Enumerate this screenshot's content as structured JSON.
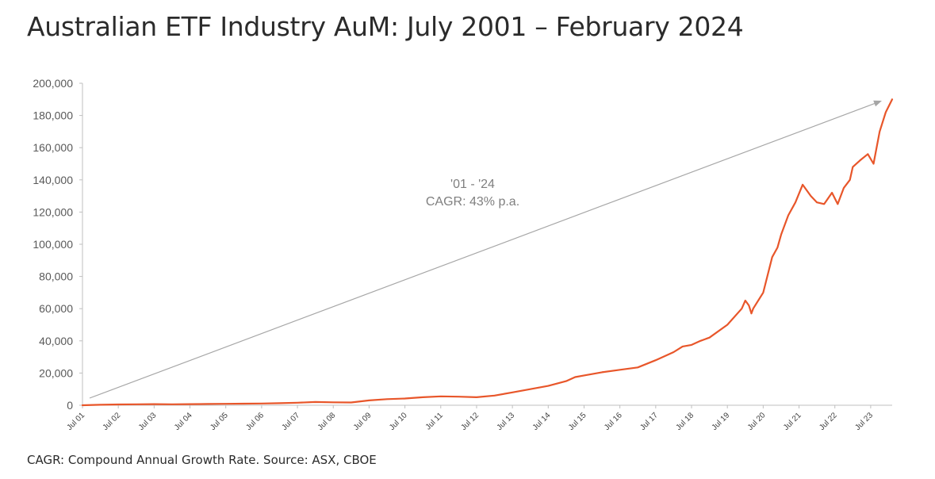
{
  "title": "Australian ETF Industry AuM: July 2001 – February 2024",
  "footnote": "CAGR: Compound Annual Growth Rate. Source: ASX, CBOE",
  "colors": {
    "series": "#e8562a",
    "arrow": "#a6a6a6",
    "axis": "#bfbfbf",
    "text": "#2b2b2b"
  },
  "chart_data": {
    "type": "line",
    "title": "Australian ETF Industry AuM: July 2001 – February 2024",
    "xlabel": "",
    "ylabel": "",
    "ylim": [
      0,
      200000
    ],
    "yticks": [
      0,
      20000,
      40000,
      60000,
      80000,
      100000,
      120000,
      140000,
      160000,
      180000,
      200000
    ],
    "ytick_labels": [
      "0",
      "20,000",
      "40,000",
      "60,000",
      "80,000",
      "100,000",
      "120,000",
      "140,000",
      "160,000",
      "180,000",
      "200,000"
    ],
    "xlim": [
      2001.5,
      2024.1
    ],
    "xtick_labels": [
      "Jul 01",
      "Jul 02",
      "Jul 03",
      "Jul 04",
      "Jul 05",
      "Jul 06",
      "Jul 07",
      "Jul 08",
      "Jul 09",
      "Jul 10",
      "Jul 11",
      "Jul 12",
      "Jul 13",
      "Jul 14",
      "Jul 15",
      "Jul 16",
      "Jul 17",
      "Jul 18",
      "Jul 19",
      "Jul 20",
      "Jul 21",
      "Jul 22",
      "Jul 23"
    ],
    "grid": false,
    "legend": "none",
    "series": [
      {
        "x": [
          2001.5,
          2002.0,
          2002.5,
          2003.0,
          2003.5,
          2004.0,
          2004.5,
          2005.0,
          2005.5,
          2006.0,
          2006.5,
          2007.0,
          2007.5,
          2008.0,
          2008.5,
          2009.0,
          2009.5,
          2010.0,
          2010.5,
          2011.0,
          2011.5,
          2012.0,
          2012.5,
          2013.0,
          2013.5,
          2014.0,
          2014.5,
          2015.0,
          2015.25,
          2015.5,
          2015.75,
          2016.0,
          2016.5,
          2017.0,
          2017.5,
          2018.0,
          2018.25,
          2018.5,
          2018.75,
          2019.0,
          2019.5,
          2019.9,
          2020.0,
          2020.1,
          2020.17,
          2020.22,
          2020.5,
          2020.75,
          2020.9,
          2021.0,
          2021.2,
          2021.4,
          2021.6,
          2021.83,
          2022.0,
          2022.2,
          2022.42,
          2022.58,
          2022.75,
          2022.92,
          2023.0,
          2023.2,
          2023.42,
          2023.58,
          2023.75,
          2023.92,
          2024.1
        ],
        "values": [
          0,
          300,
          500,
          600,
          700,
          600,
          700,
          800,
          900,
          1000,
          1100,
          1300,
          1600,
          2000,
          1800,
          1700,
          3000,
          3800,
          4200,
          5000,
          5500,
          5300,
          5000,
          6000,
          8000,
          10000,
          12000,
          15000,
          17500,
          18500,
          19500,
          20500,
          22000,
          23500,
          28000,
          33000,
          36500,
          37500,
          40000,
          42000,
          50000,
          60000,
          65000,
          62000,
          57000,
          60000,
          70000,
          92000,
          98000,
          106000,
          118000,
          126000,
          137000,
          130000,
          126000,
          125000,
          132000,
          125000,
          135000,
          140000,
          148000,
          152000,
          156000,
          150000,
          170000,
          182000,
          190000
        ]
      }
    ],
    "annotations": [
      "'01 - '24",
      "CAGR: 43% p.a."
    ]
  }
}
